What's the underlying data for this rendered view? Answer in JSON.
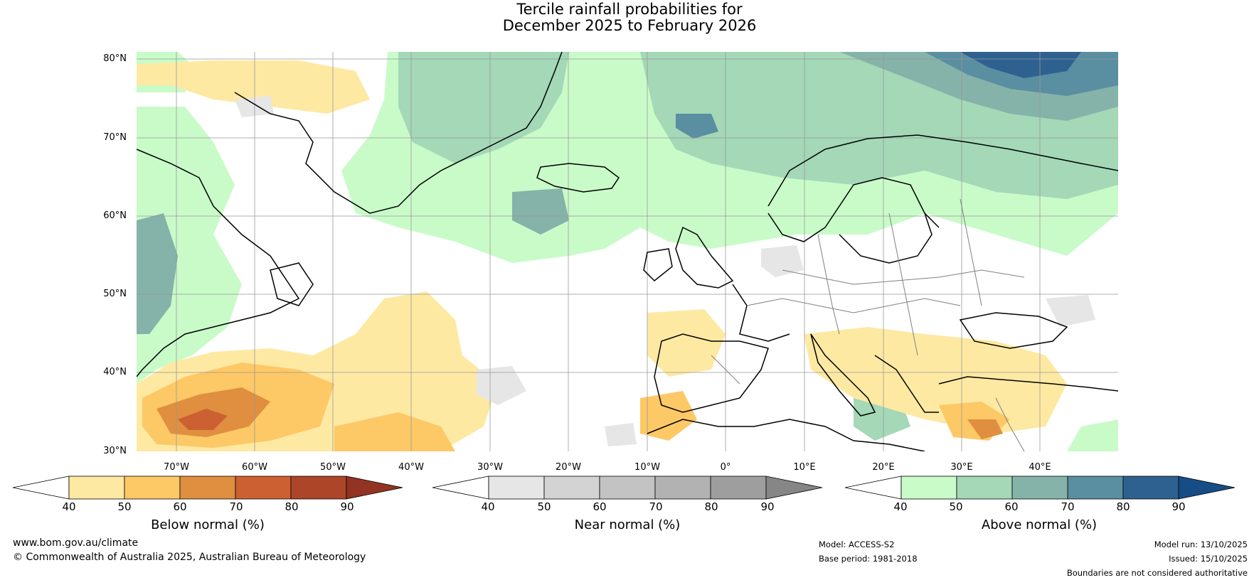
{
  "title": {
    "line1": "Tercile rainfall probabilities for",
    "line2": "December 2025 to February 2026"
  },
  "map": {
    "lat_labels": [
      "80°N",
      "70°N",
      "60°N",
      "50°N",
      "40°N",
      "30°N"
    ],
    "lon_labels": [
      "70°W",
      "60°W",
      "50°W",
      "40°W",
      "30°W",
      "20°W",
      "10°W",
      "0°",
      "10°E",
      "20°E",
      "30°E",
      "40°E"
    ],
    "lat_values": [
      80,
      70,
      60,
      50,
      40,
      30
    ],
    "lon_values": [
      -70,
      -60,
      -50,
      -40,
      -30,
      -20,
      -10,
      0,
      10,
      20,
      30,
      40
    ],
    "lon_range": [
      -77.5,
      47.5
    ],
    "lat_range": [
      29,
      80.5
    ],
    "ocean_color": "#ffffff",
    "coast_color": "#000000",
    "border_color": "#808080",
    "grid_color": "#999999"
  },
  "colorbars": [
    {
      "title": "Below normal (%)",
      "ticks": [
        "40",
        "50",
        "60",
        "70",
        "80",
        "90"
      ],
      "colors": [
        "#ffffff",
        "#fee9a3",
        "#fdc866",
        "#df8f3f",
        "#cc6033",
        "#ad4628",
        "#923323"
      ]
    },
    {
      "title": "Near normal (%)",
      "ticks": [
        "40",
        "50",
        "60",
        "70",
        "80",
        "90"
      ],
      "colors": [
        "#ffffff",
        "#e6e6e6",
        "#d3d3d3",
        "#c3c3c3",
        "#b2b2b2",
        "#9e9e9e",
        "#868686"
      ]
    },
    {
      "title": "Above normal (%)",
      "ticks": [
        "40",
        "50",
        "60",
        "70",
        "80",
        "90"
      ],
      "colors": [
        "#ffffff",
        "#c9fbc9",
        "#a4d8b7",
        "#85b3a9",
        "#5a8ea1",
        "#2e6190",
        "#164d86"
      ]
    }
  ],
  "footer": {
    "url": "www.bom.gov.au/climate",
    "copyright": "© Commonwealth of Australia 2025, Australian Bureau of Meteorology",
    "model": "Model: ACCESS-S2",
    "base_period": "Base period: 1981-2018",
    "model_run": "Model run: 13/10/2025",
    "issued": "Issued: 15/10/2025",
    "disclaimer": "Boundaries are not considered authoritative"
  }
}
